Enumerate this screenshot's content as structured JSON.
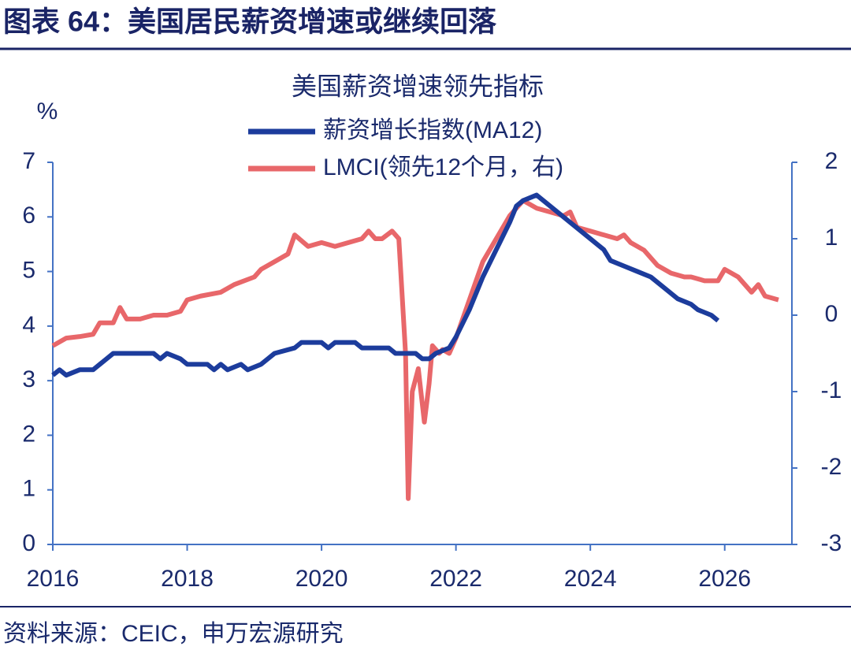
{
  "header": {
    "title": "图表 64：美国居民薪资增速或继续回落"
  },
  "footer": {
    "source": "资料来源：CEIC，申万宏源研究"
  },
  "chart_data": {
    "type": "line",
    "title": "美国薪资增速领先指标",
    "y_label": "%",
    "xlim": [
      2016,
      2027
    ],
    "xticks": [
      2016,
      2018,
      2020,
      2022,
      2024,
      2026
    ],
    "ylim": [
      0,
      7
    ],
    "yticks": [
      0,
      1,
      2,
      3,
      4,
      5,
      6,
      7
    ],
    "y2lim": [
      -3,
      2
    ],
    "y2ticks": [
      -3,
      -2,
      -1,
      0,
      1,
      2
    ],
    "grid": false,
    "series": [
      {
        "name": "薪资增长指数(MA12)",
        "color": "#1c3c9c",
        "axis": "y",
        "x": [
          2016.0,
          2016.1,
          2016.2,
          2016.4,
          2016.6,
          2016.8,
          2016.9,
          2017.5,
          2017.6,
          2017.7,
          2017.9,
          2018.0,
          2018.3,
          2018.4,
          2018.5,
          2018.6,
          2018.8,
          2018.9,
          2019.1,
          2019.2,
          2019.3,
          2019.6,
          2019.7,
          2020.0,
          2020.1,
          2020.2,
          2020.5,
          2020.6,
          2021.0,
          2021.1,
          2021.4,
          2021.5,
          2021.6,
          2021.7,
          2021.9,
          2022.0,
          2022.2,
          2022.4,
          2022.6,
          2022.8,
          2022.9,
          2023.0,
          2023.2,
          2023.4,
          2023.6,
          2023.8,
          2024.0,
          2024.2,
          2024.3,
          2024.5,
          2024.7,
          2024.9,
          2025.1,
          2025.3,
          2025.5,
          2025.6,
          2025.8,
          2025.9
        ],
        "values": [
          3.1,
          3.2,
          3.1,
          3.2,
          3.2,
          3.4,
          3.5,
          3.5,
          3.4,
          3.5,
          3.4,
          3.3,
          3.3,
          3.2,
          3.3,
          3.2,
          3.3,
          3.2,
          3.3,
          3.4,
          3.5,
          3.6,
          3.7,
          3.7,
          3.6,
          3.7,
          3.7,
          3.6,
          3.6,
          3.5,
          3.5,
          3.4,
          3.4,
          3.5,
          3.6,
          3.8,
          4.3,
          4.9,
          5.4,
          5.9,
          6.2,
          6.3,
          6.4,
          6.2,
          6.0,
          5.8,
          5.6,
          5.4,
          5.2,
          5.1,
          5.0,
          4.9,
          4.7,
          4.5,
          4.4,
          4.3,
          4.2,
          4.1
        ]
      },
      {
        "name": "LMCI(领先12个月，右)",
        "color": "#e8676a",
        "axis": "y2",
        "x": [
          2016.0,
          2016.2,
          2016.4,
          2016.6,
          2016.7,
          2016.9,
          2017.0,
          2017.1,
          2017.3,
          2017.5,
          2017.7,
          2017.9,
          2018.0,
          2018.2,
          2018.5,
          2018.7,
          2019.0,
          2019.1,
          2019.3,
          2019.5,
          2019.6,
          2019.8,
          2020.0,
          2020.2,
          2020.4,
          2020.6,
          2020.7,
          2020.8,
          2020.9,
          2021.05,
          2021.15,
          2021.25,
          2021.29,
          2021.35,
          2021.44,
          2021.53,
          2021.6,
          2021.65,
          2021.75,
          2021.8,
          2021.9,
          2022.0,
          2022.2,
          2022.4,
          2022.6,
          2022.8,
          2022.9,
          2023.0,
          2023.2,
          2023.4,
          2023.6,
          2023.7,
          2023.8,
          2024.0,
          2024.2,
          2024.4,
          2024.5,
          2024.6,
          2024.8,
          2025.0,
          2025.2,
          2025.4,
          2025.5,
          2025.7,
          2025.9,
          2026.0,
          2026.2,
          2026.4,
          2026.5,
          2026.6,
          2026.8
        ],
        "values": [
          -0.4,
          -0.3,
          -0.28,
          -0.25,
          -0.1,
          -0.1,
          0.1,
          -0.05,
          -0.05,
          0.0,
          0.0,
          0.05,
          0.2,
          0.25,
          0.3,
          0.4,
          0.5,
          0.6,
          0.7,
          0.8,
          1.05,
          0.9,
          0.95,
          0.9,
          0.95,
          1.0,
          1.1,
          1.0,
          1.0,
          1.1,
          1.0,
          -0.5,
          -2.4,
          -1.0,
          -0.7,
          -1.4,
          -0.9,
          -0.4,
          -0.5,
          -0.45,
          -0.5,
          -0.3,
          0.2,
          0.7,
          1.0,
          1.3,
          1.4,
          1.5,
          1.4,
          1.35,
          1.3,
          1.35,
          1.15,
          1.1,
          1.05,
          1.0,
          1.05,
          0.95,
          0.85,
          0.65,
          0.55,
          0.5,
          0.5,
          0.45,
          0.45,
          0.6,
          0.5,
          0.3,
          0.4,
          0.25,
          0.2
        ]
      }
    ]
  }
}
